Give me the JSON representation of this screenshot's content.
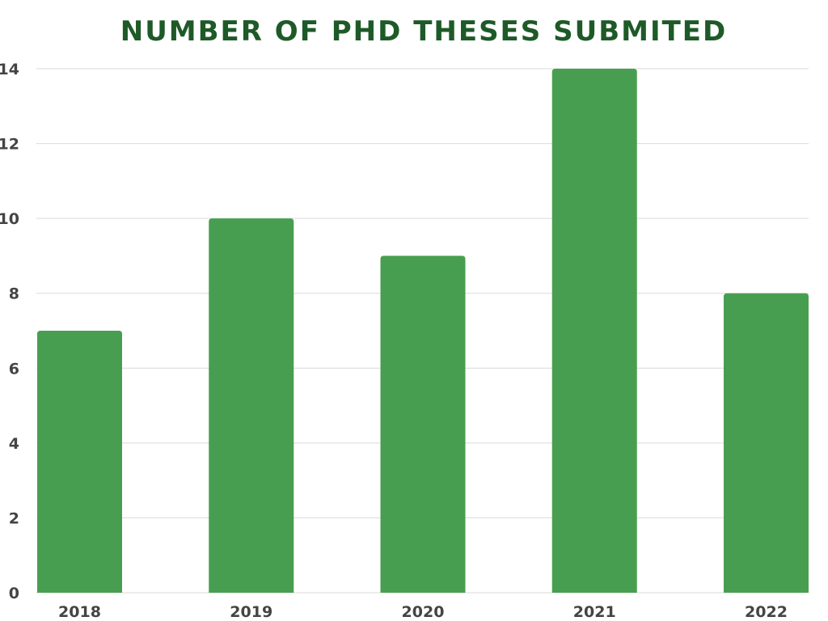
{
  "chart_data": {
    "type": "bar",
    "title": "NUMBER OF PHD THESES SUBMITED",
    "xlabel": "",
    "ylabel": "",
    "categories": [
      "2018",
      "2019",
      "2020",
      "2021",
      "2022"
    ],
    "values": [
      7,
      10,
      9,
      14,
      8
    ],
    "ylim": [
      0,
      14
    ],
    "yticks": [
      "0",
      "2",
      "4",
      "6",
      "8",
      "10",
      "12",
      "14"
    ],
    "grid": true,
    "legend": "none"
  },
  "colors": {
    "bar": "#489e50",
    "title": "#1e5a28",
    "tick_label": "#444444"
  }
}
